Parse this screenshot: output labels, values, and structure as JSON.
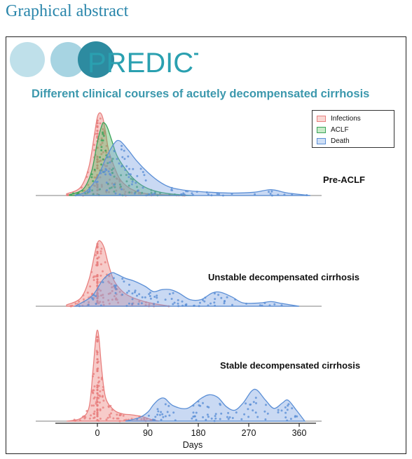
{
  "header": {
    "title": "Graphical abstract"
  },
  "logo": {
    "text": "PREDICT"
  },
  "chart_data": {
    "type": "area",
    "title": "Different clinical courses of acutely decompensated cirrhosis",
    "xlabel": "Days",
    "xlim": [
      -110,
      400
    ],
    "xticks": [
      0,
      90,
      180,
      270,
      360
    ],
    "legend_position": "top-right",
    "colors": {
      "Infections": "#e8807f",
      "ACLF": "#3aa45a",
      "Death": "#5b8fd6"
    },
    "groups": [
      {
        "label": "Pre-ACLF",
        "series": [
          {
            "name": "Infections",
            "x": [
              -55,
              -30,
              -15,
              -5,
              0,
              5,
              10,
              15,
              20,
              30,
              40,
              55,
              70,
              90,
              120,
              160
            ],
            "density": [
              0.02,
              0.1,
              0.35,
              0.75,
              0.95,
              1.0,
              0.93,
              0.75,
              0.55,
              0.35,
              0.2,
              0.1,
              0.05,
              0.02,
              0.01,
              0.0
            ]
          },
          {
            "name": "ACLF",
            "x": [
              -50,
              -25,
              -10,
              0,
              8,
              12,
              18,
              25,
              35,
              50,
              65,
              80,
              100,
              130,
              170
            ],
            "density": [
              0.01,
              0.08,
              0.3,
              0.65,
              0.85,
              0.88,
              0.82,
              0.68,
              0.48,
              0.32,
              0.2,
              0.12,
              0.06,
              0.02,
              0.0
            ]
          },
          {
            "name": "Death",
            "x": [
              -40,
              -20,
              0,
              15,
              30,
              40,
              55,
              70,
              90,
              110,
              130,
              160,
              200,
              240,
              280,
              310,
              340,
              380
            ],
            "density": [
              0.0,
              0.05,
              0.22,
              0.45,
              0.63,
              0.66,
              0.55,
              0.42,
              0.28,
              0.17,
              0.1,
              0.06,
              0.04,
              0.03,
              0.04,
              0.07,
              0.03,
              0.0
            ]
          }
        ]
      },
      {
        "label": "Unstable decompensated cirrhosis",
        "series": [
          {
            "name": "Infections",
            "x": [
              -55,
              -30,
              -15,
              -5,
              0,
              5,
              12,
              20,
              30,
              45,
              60,
              80,
              100,
              130
            ],
            "density": [
              0.02,
              0.12,
              0.4,
              0.78,
              0.95,
              0.98,
              0.88,
              0.62,
              0.38,
              0.22,
              0.14,
              0.08,
              0.04,
              0.0
            ]
          },
          {
            "name": "Death",
            "x": [
              -40,
              -10,
              10,
              25,
              35,
              50,
              65,
              85,
              100,
              115,
              130,
              145,
              165,
              185,
              205,
              220,
              240,
              260,
              290,
              310,
              330,
              360
            ],
            "density": [
              0.0,
              0.15,
              0.4,
              0.5,
              0.48,
              0.42,
              0.38,
              0.3,
              0.22,
              0.25,
              0.25,
              0.2,
              0.1,
              0.1,
              0.2,
              0.21,
              0.14,
              0.05,
              0.05,
              0.07,
              0.04,
              0.0
            ]
          }
        ]
      },
      {
        "label": "Stable decompensated cirrhosis",
        "series": [
          {
            "name": "Infections",
            "x": [
              -55,
              -30,
              -15,
              -8,
              -3,
              0,
              3,
              8,
              15,
              30,
              45,
              60,
              80,
              95,
              110
            ],
            "density": [
              0.0,
              0.03,
              0.15,
              0.55,
              0.9,
              1.0,
              0.9,
              0.55,
              0.25,
              0.12,
              0.08,
              0.07,
              0.05,
              0.02,
              0.0
            ]
          },
          {
            "name": "Death",
            "x": [
              50,
              75,
              90,
              100,
              110,
              120,
              135,
              160,
              185,
              200,
              215,
              230,
              245,
              260,
              275,
              285,
              300,
              315,
              330,
              340,
              355,
              370
            ],
            "density": [
              0.0,
              0.04,
              0.1,
              0.18,
              0.24,
              0.25,
              0.17,
              0.14,
              0.25,
              0.29,
              0.26,
              0.16,
              0.12,
              0.2,
              0.33,
              0.34,
              0.23,
              0.14,
              0.2,
              0.23,
              0.12,
              0.0
            ]
          }
        ]
      }
    ]
  }
}
